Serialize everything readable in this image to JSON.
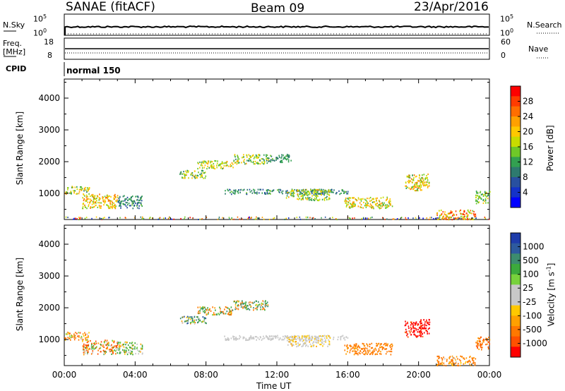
{
  "header": {
    "station": "SANAE (fitACF)",
    "beam": "Beam 09",
    "date": "23/Apr/2016"
  },
  "noise_panel": {
    "left_label": "N.Sky",
    "left_ticks": [
      "10^5",
      "10^0"
    ],
    "right_ticks": [
      "10^5",
      "10^0"
    ],
    "right_label": "N.Search"
  },
  "freq_panel": {
    "left_label_1": "Freq.",
    "left_label_2": "[MHz]",
    "left_ticks": [
      "18",
      "8"
    ],
    "right_ticks": [
      "60",
      "0"
    ],
    "right_label": "Nave"
  },
  "cpid": {
    "label": "CPID",
    "value": "normal 150"
  },
  "colorbars": {
    "power": {
      "title": "Power [dB]",
      "ticks": [
        "28",
        "24",
        "20",
        "16",
        "12",
        "8",
        "4"
      ],
      "colors": [
        "#ff0000",
        "#ff3c00",
        "#ff6e00",
        "#ffa000",
        "#ffc800",
        "#c8dc00",
        "#6ec828",
        "#32a050",
        "#2d7a6e",
        "#2850a0",
        "#1432c8",
        "#0000ff"
      ]
    },
    "velocity": {
      "title": "Velocity [m s^-1]",
      "ticks": [
        "1000",
        "500",
        "100",
        "25",
        "-25",
        "-100",
        "-500",
        "-1000"
      ],
      "colors": [
        "#1e3caa",
        "#2d5a9e",
        "#3c8c6e",
        "#3caa3c",
        "#78d23c",
        "#c8c8c8",
        "#c8c8c8",
        "#ffc800",
        "#ffa000",
        "#ff7800",
        "#ff5000",
        "#ff0000"
      ]
    }
  },
  "chart_data": [
    {
      "type": "scatter",
      "title": "",
      "xlabel": "",
      "ylabel": "Slant Range [km]",
      "x_ticks": [
        "00:00",
        "04:00",
        "08:00",
        "12:00",
        "16:00",
        "20:00",
        "00:00"
      ],
      "y_ticks": [
        "4000",
        "3000",
        "2000",
        "1000"
      ],
      "xlim_hours": [
        0,
        24
      ],
      "ylim_km": [
        180,
        4600
      ],
      "variable": "power_dB",
      "clusters": [
        {
          "t0": 0.0,
          "t1": 1.4,
          "r0": 1000,
          "r1": 1250,
          "v0": 10,
          "v1": 24
        },
        {
          "t0": 1.0,
          "t1": 3.0,
          "r0": 550,
          "r1": 1000,
          "v0": 14,
          "v1": 26
        },
        {
          "t0": 3.0,
          "t1": 4.4,
          "r0": 550,
          "r1": 950,
          "v0": 6,
          "v1": 14
        },
        {
          "t0": 6.5,
          "t1": 8.0,
          "r0": 1500,
          "r1": 1750,
          "v0": 10,
          "v1": 22
        },
        {
          "t0": 7.5,
          "t1": 9.5,
          "r0": 1800,
          "r1": 2050,
          "v0": 12,
          "v1": 22
        },
        {
          "t0": 9.5,
          "t1": 11.5,
          "r0": 1950,
          "r1": 2250,
          "v0": 10,
          "v1": 22
        },
        {
          "t0": 11.5,
          "t1": 12.8,
          "r0": 2000,
          "r1": 2250,
          "v0": 8,
          "v1": 14
        },
        {
          "t0": 9.0,
          "t1": 16.0,
          "r0": 1000,
          "r1": 1150,
          "v0": 6,
          "v1": 14
        },
        {
          "t0": 12.5,
          "t1": 15.0,
          "r0": 800,
          "r1": 1150,
          "v0": 10,
          "v1": 22
        },
        {
          "t0": 15.8,
          "t1": 18.5,
          "r0": 550,
          "r1": 900,
          "v0": 12,
          "v1": 24
        },
        {
          "t0": 19.2,
          "t1": 20.2,
          "r0": 1100,
          "r1": 1600,
          "v0": 12,
          "v1": 26
        },
        {
          "t0": 20.0,
          "t1": 20.6,
          "r0": 1200,
          "r1": 1650,
          "v0": 14,
          "v1": 24
        },
        {
          "t0": 21.0,
          "t1": 23.2,
          "r0": 200,
          "r1": 500,
          "v0": 14,
          "v1": 30
        },
        {
          "t0": 23.2,
          "t1": 24.0,
          "r0": 700,
          "r1": 1100,
          "v0": 10,
          "v1": 20
        }
      ]
    },
    {
      "type": "scatter",
      "title": "",
      "xlabel": "Time UT",
      "ylabel": "Slant Range [km]",
      "x_ticks": [
        "00:00",
        "04:00",
        "08:00",
        "12:00",
        "16:00",
        "20:00",
        "00:00"
      ],
      "y_ticks": [
        "4000",
        "3000",
        "2000",
        "1000"
      ],
      "xlim_hours": [
        0,
        24
      ],
      "ylim_km": [
        180,
        4600
      ],
      "variable": "velocity_ms",
      "clusters": [
        {
          "t0": 0.0,
          "t1": 1.4,
          "r0": 1000,
          "r1": 1250,
          "v0": -400,
          "v1": 100
        },
        {
          "t0": 1.0,
          "t1": 3.0,
          "r0": 550,
          "r1": 1000,
          "v0": -500,
          "v1": 200
        },
        {
          "t0": 3.0,
          "t1": 4.4,
          "r0": 550,
          "r1": 950,
          "v0": -100,
          "v1": 300
        },
        {
          "t0": 6.5,
          "t1": 8.0,
          "r0": 1500,
          "r1": 1750,
          "v0": -200,
          "v1": 600
        },
        {
          "t0": 7.5,
          "t1": 9.5,
          "r0": 1800,
          "r1": 2050,
          "v0": -300,
          "v1": 400
        },
        {
          "t0": 9.5,
          "t1": 11.5,
          "r0": 1950,
          "r1": 2250,
          "v0": -300,
          "v1": 500
        },
        {
          "t0": 9.0,
          "t1": 16.0,
          "r0": 1000,
          "r1": 1150,
          "v0": -20,
          "v1": 20
        },
        {
          "t0": 12.5,
          "t1": 15.0,
          "r0": 800,
          "r1": 1150,
          "v0": -60,
          "v1": 20
        },
        {
          "t0": 15.8,
          "t1": 18.5,
          "r0": 550,
          "r1": 900,
          "v0": -300,
          "v1": -50
        },
        {
          "t0": 19.2,
          "t1": 20.2,
          "r0": 1100,
          "r1": 1600,
          "v0": -1000,
          "v1": -300
        },
        {
          "t0": 20.0,
          "t1": 20.6,
          "r0": 1200,
          "r1": 1650,
          "v0": -1000,
          "v1": -400
        },
        {
          "t0": 21.0,
          "t1": 23.2,
          "r0": 200,
          "r1": 500,
          "v0": -300,
          "v1": 0
        },
        {
          "t0": 23.2,
          "t1": 24.0,
          "r0": 700,
          "r1": 1100,
          "v0": -400,
          "v1": -50
        }
      ]
    }
  ]
}
